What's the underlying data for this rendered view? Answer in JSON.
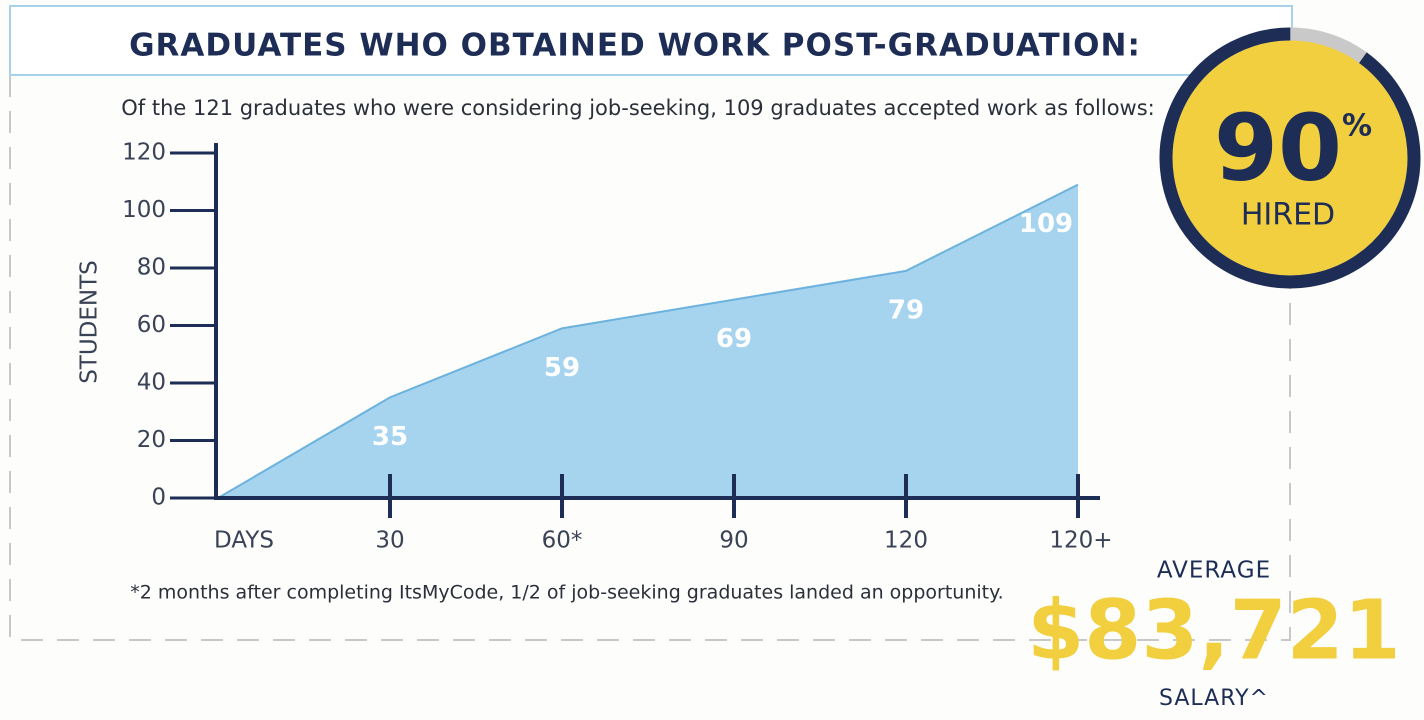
{
  "chart_data": {
    "type": "area",
    "title": "GRADUATES WHO OBTAINED WORK POST-GRADUATION:",
    "subtitle": "Of the 121 graduates who were considering job-seeking, 109 graduates accepted work as follows:",
    "y_label": "STUDENTS",
    "x_label": "DAYS",
    "categories": [
      null,
      "30",
      "60*",
      "90",
      "120",
      "120+"
    ],
    "values": [
      0,
      35,
      59,
      69,
      79,
      109
    ],
    "color": "#a6d4ef",
    "line_color": "#6cb2dd",
    "ylim": [
      0,
      120
    ],
    "yticks": [
      0,
      20,
      40,
      60,
      80,
      100,
      120
    ],
    "footnote": "*2 months after completing ItsMyCode, 1/2 of job-seeking graduates landed an opportunity."
  },
  "hired": {
    "value": 90,
    "unit": "%",
    "label": "HIRED"
  },
  "salary": {
    "caption": "AVERAGE",
    "value": "$83,721",
    "label": "SALARY^"
  }
}
